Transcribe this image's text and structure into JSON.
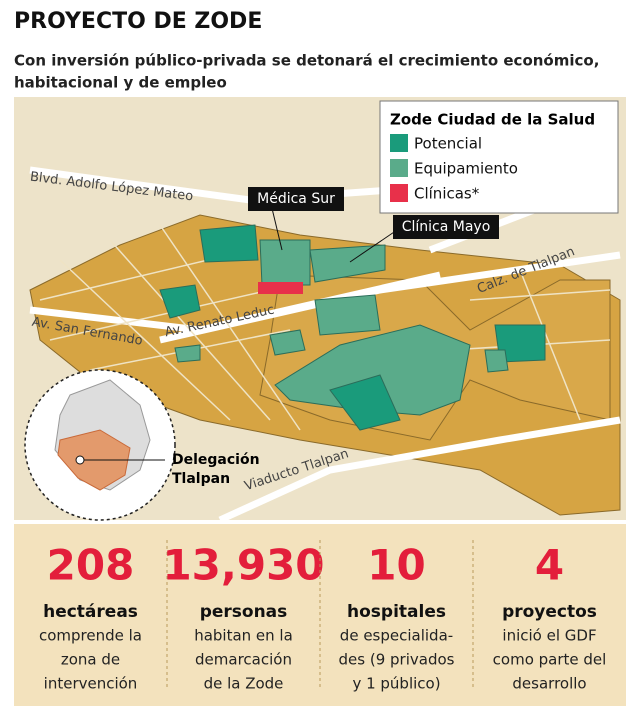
{
  "header": {
    "title": "PROYECTO DE ZODE",
    "subtitle": [
      "Con inversión público-privada se detonará el crecimiento económico,",
      "habitacional y de empleo"
    ]
  },
  "legend": {
    "title": "Zode Ciudad de la Salud",
    "items": [
      "Potencial",
      "Equipamiento",
      "Clínicas*"
    ]
  },
  "map": {
    "streets": [
      "Blvd. Adolfo López Mateo",
      "Av. Renato Leduc",
      "Av. San Fernando",
      "Calz. de Tlalpan",
      "Viaducto Tlalpan"
    ],
    "callouts": [
      "Médica Sur",
      "Clínica Mayo"
    ],
    "inset_label": [
      "Delegación",
      "Tlalpan"
    ]
  },
  "stats": [
    {
      "number": "208",
      "unit": "hectáreas",
      "text": [
        "comprende la",
        "zona de",
        "intervención"
      ]
    },
    {
      "number": "13,930",
      "unit": "personas",
      "text": [
        "habitan en la",
        "demarcación",
        "de la Zode"
      ]
    },
    {
      "number": "10",
      "unit": "hospitales",
      "text": [
        "de especialida-",
        "des (9 privados",
        "y 1 público)"
      ]
    },
    {
      "number": "4",
      "unit": "proyectos",
      "text": [
        "inició el GDF",
        "como parte del",
        "desarrollo"
      ]
    }
  ]
}
